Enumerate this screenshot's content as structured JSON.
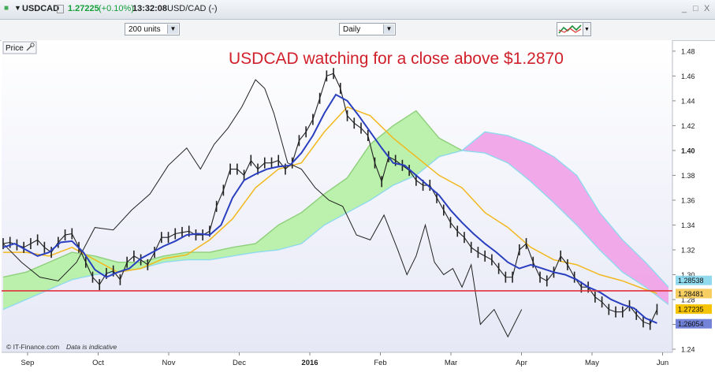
{
  "window": {
    "symbol": "USDCAD",
    "price": "1.27225",
    "change": "(+0.10%)",
    "time": "13:32:08",
    "pair": "USD/CAD (-)",
    "controls": [
      "_",
      "□",
      "X"
    ]
  },
  "toolbar": {
    "units": "200 units",
    "period": "Daily",
    "chart_tool_icon": "line-chart-icon"
  },
  "chart_panel": {
    "price_label": "Price",
    "footer_source": "© IT-Finance.com",
    "footer_note": "Data is indicative"
  },
  "colors": {
    "title": "#d0202a",
    "hline": "#e0323a",
    "price": "#222222",
    "ma_fast": "#2a3fbf",
    "ma_slow": "#f2b820",
    "lagging": "#222222",
    "cloud_bull": "#b7f0a8",
    "cloud_bear": "#f0a4e8",
    "cloud_edge": "#8fd9ee"
  },
  "chart_data": {
    "type": "line",
    "title": "USDCAD watching for a close above $1.2870",
    "x_labels": [
      "Sep",
      "Oct",
      "Nov",
      "Dec",
      "2016",
      "Feb",
      "Mar",
      "Apr",
      "May",
      "Jun"
    ],
    "y_ticks": [
      1.24,
      1.26,
      1.28,
      1.3,
      1.32,
      1.34,
      1.36,
      1.38,
      1.4,
      1.42,
      1.44,
      1.46,
      1.48
    ],
    "ylim": [
      1.24,
      1.485
    ],
    "horizontal_line": 1.287,
    "price_tags": [
      {
        "label": "1.28538",
        "value": 1.2954,
        "color": "#7ed3ea"
      },
      {
        "label": "1.28481",
        "value": 1.2848,
        "color": "#f6c646"
      },
      {
        "label": "1.27235",
        "value": 1.2723,
        "color": "#f6c400"
      },
      {
        "label": "1.26054",
        "value": 1.2605,
        "color": "#5b6fd1"
      }
    ],
    "series": [
      {
        "name": "",
        "kind": "price",
        "x": [
          0,
          3,
          6,
          9,
          12,
          15,
          18,
          21,
          24,
          27,
          30,
          33,
          36,
          39,
          42,
          45,
          48,
          51,
          54,
          57,
          60,
          63,
          66,
          69,
          72,
          75,
          78,
          81,
          84,
          87,
          90,
          93,
          96,
          99,
          102,
          105,
          108,
          111,
          114,
          117,
          120,
          123,
          126,
          129,
          132,
          135,
          138,
          141,
          144,
          147,
          150,
          153,
          156,
          159,
          162,
          165,
          168,
          171,
          174,
          177,
          180,
          183,
          186,
          189,
          192,
          195,
          198,
          201,
          204,
          207,
          210,
          213,
          216,
          219,
          222,
          225,
          228,
          231,
          234,
          237,
          240,
          243,
          246,
          249,
          252,
          255,
          258,
          261,
          264,
          267,
          270,
          273,
          276,
          279,
          282,
          285
        ],
        "y": [
          1.325,
          1.326,
          1.324,
          1.322,
          1.325,
          1.328,
          1.322,
          1.318,
          1.326,
          1.332,
          1.333,
          1.322,
          1.31,
          1.298,
          1.292,
          1.301,
          1.303,
          1.296,
          1.31,
          1.315,
          1.312,
          1.308,
          1.318,
          1.33,
          1.33,
          1.333,
          1.334,
          1.335,
          1.332,
          1.332,
          1.335,
          1.355,
          1.368,
          1.385,
          1.385,
          1.38,
          1.392,
          1.385,
          1.39,
          1.39,
          1.392,
          1.385,
          1.39,
          1.408,
          1.415,
          1.425,
          1.442,
          1.46,
          1.462,
          1.45,
          1.428,
          1.422,
          1.418,
          1.412,
          1.39,
          1.375,
          1.395,
          1.392,
          1.388,
          1.384,
          1.376,
          1.372,
          1.372,
          1.362,
          1.352,
          1.342,
          1.335,
          1.33,
          1.322,
          1.318,
          1.315,
          1.312,
          1.305,
          1.298,
          1.298,
          1.32,
          1.325,
          1.31,
          1.298,
          1.295,
          1.302,
          1.315,
          1.308,
          1.298,
          1.29,
          1.29,
          1.282,
          1.278,
          1.272,
          1.27,
          1.27,
          1.275,
          1.268,
          1.262,
          1.26,
          1.272
        ]
      },
      {
        "name": "",
        "kind": "ma_fast",
        "x": [
          0,
          5,
          10,
          15,
          20,
          25,
          30,
          35,
          40,
          45,
          50,
          55,
          60,
          65,
          70,
          75,
          80,
          85,
          90,
          95,
          100,
          105,
          110,
          115,
          120,
          125,
          130,
          135,
          140,
          145,
          150,
          155,
          160,
          165,
          170,
          175,
          180,
          185,
          190,
          195,
          200,
          205,
          210,
          215,
          220,
          225,
          230,
          235,
          240,
          245,
          250,
          255,
          260,
          265,
          270,
          275,
          280,
          285
        ],
        "y": [
          1.322,
          1.325,
          1.32,
          1.315,
          1.318,
          1.326,
          1.327,
          1.318,
          1.304,
          1.298,
          1.302,
          1.305,
          1.313,
          1.318,
          1.323,
          1.327,
          1.332,
          1.333,
          1.332,
          1.34,
          1.362,
          1.376,
          1.381,
          1.385,
          1.387,
          1.388,
          1.398,
          1.412,
          1.43,
          1.445,
          1.44,
          1.428,
          1.415,
          1.402,
          1.39,
          1.388,
          1.38,
          1.372,
          1.364,
          1.352,
          1.342,
          1.333,
          1.325,
          1.318,
          1.31,
          1.305,
          1.308,
          1.305,
          1.302,
          1.3,
          1.296,
          1.29,
          1.286,
          1.28,
          1.276,
          1.273,
          1.265,
          1.261
        ]
      },
      {
        "name": "",
        "kind": "ma_slow",
        "x": [
          0,
          10,
          20,
          30,
          40,
          50,
          60,
          70,
          80,
          90,
          100,
          110,
          120,
          130,
          140,
          150,
          160,
          170,
          180,
          190,
          200,
          210,
          220,
          230,
          240,
          250,
          260,
          270,
          280,
          285
        ],
        "y": [
          1.318,
          1.318,
          1.315,
          1.322,
          1.312,
          1.302,
          1.305,
          1.313,
          1.316,
          1.328,
          1.345,
          1.37,
          1.385,
          1.39,
          1.415,
          1.435,
          1.428,
          1.41,
          1.395,
          1.38,
          1.37,
          1.35,
          1.338,
          1.322,
          1.312,
          1.308,
          1.3,
          1.295,
          1.288,
          1.285
        ]
      },
      {
        "name": "",
        "kind": "lagging",
        "x": [
          0,
          8,
          16,
          24,
          32,
          40,
          48,
          56,
          64,
          72,
          80,
          86,
          92,
          98,
          104,
          110,
          114,
          118,
          124,
          130,
          136,
          142,
          148,
          154,
          160,
          166,
          172,
          176,
          180,
          184,
          188,
          192,
          196,
          200,
          204,
          208,
          214,
          220,
          226
        ],
        "y": [
          1.325,
          1.31,
          1.298,
          1.295,
          1.31,
          1.338,
          1.336,
          1.352,
          1.365,
          1.388,
          1.402,
          1.385,
          1.405,
          1.418,
          1.435,
          1.457,
          1.45,
          1.43,
          1.39,
          1.385,
          1.37,
          1.36,
          1.355,
          1.332,
          1.328,
          1.348,
          1.32,
          1.3,
          1.315,
          1.34,
          1.31,
          1.3,
          1.305,
          1.29,
          1.308,
          1.26,
          1.272,
          1.25,
          1.272
        ]
      }
    ],
    "clouds": [
      {
        "kind": "bull",
        "x": [
          0,
          10,
          20,
          30,
          40,
          50,
          60,
          70,
          80,
          90,
          100,
          110,
          120,
          130,
          140,
          150,
          160,
          170,
          180,
          190,
          200
        ],
        "upper": [
          1.298,
          1.302,
          1.31,
          1.318,
          1.315,
          1.31,
          1.31,
          1.315,
          1.318,
          1.318,
          1.322,
          1.325,
          1.34,
          1.35,
          1.365,
          1.378,
          1.405,
          1.42,
          1.432,
          1.41,
          1.4
        ],
        "lower": [
          1.272,
          1.28,
          1.288,
          1.296,
          1.3,
          1.302,
          1.305,
          1.31,
          1.312,
          1.312,
          1.315,
          1.318,
          1.32,
          1.325,
          1.34,
          1.35,
          1.36,
          1.372,
          1.38,
          1.395,
          1.4
        ]
      },
      {
        "kind": "bear",
        "x": [
          200,
          210,
          220,
          230,
          240,
          250,
          260,
          270,
          280,
          290
        ],
        "upper": [
          1.4,
          1.415,
          1.412,
          1.405,
          1.395,
          1.38,
          1.35,
          1.328,
          1.31,
          1.29
        ],
        "lower": [
          1.4,
          1.398,
          1.39,
          1.375,
          1.358,
          1.34,
          1.32,
          1.302,
          1.29,
          1.276
        ]
      }
    ],
    "grid": false
  }
}
